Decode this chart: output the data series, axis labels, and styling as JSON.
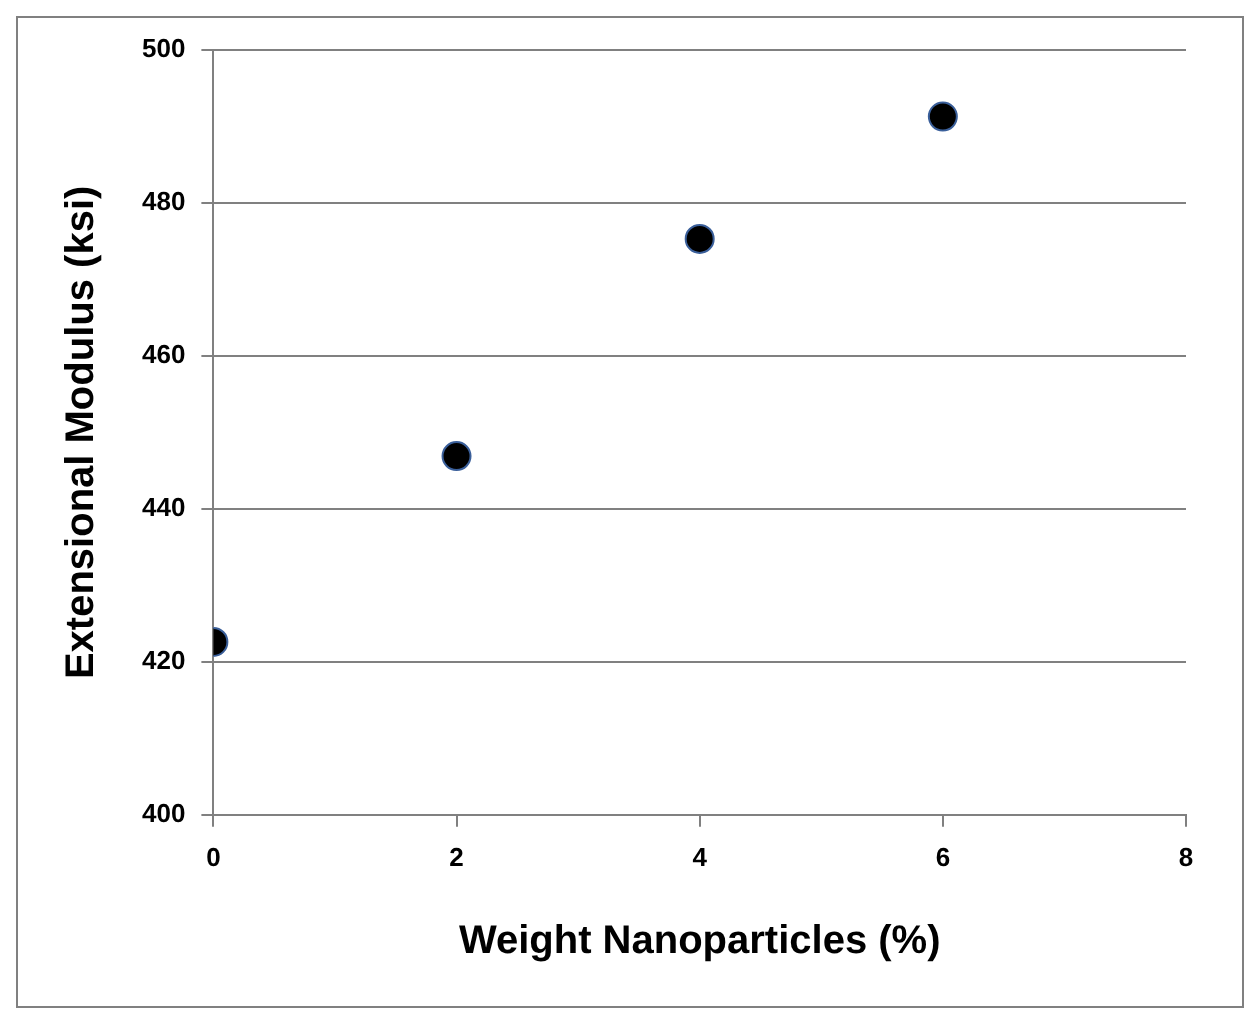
{
  "chart_data": {
    "type": "scatter",
    "xlabel": "Weight Nanoparticles (%)",
    "ylabel": "Extensional Modulus (ksi)",
    "x": [
      0,
      2,
      4,
      6
    ],
    "series": [
      {
        "color": "#000000",
        "values": [
          422.6,
          446.9,
          475.3,
          491.3
        ]
      }
    ],
    "xlim": [
      0,
      8
    ],
    "xticks": [
      0,
      2,
      4,
      6,
      8
    ],
    "ylim": [
      400,
      500
    ],
    "yticks": [
      400,
      420,
      440,
      460,
      480,
      500
    ],
    "grid": "y",
    "legend": false,
    "marker": "circle"
  }
}
